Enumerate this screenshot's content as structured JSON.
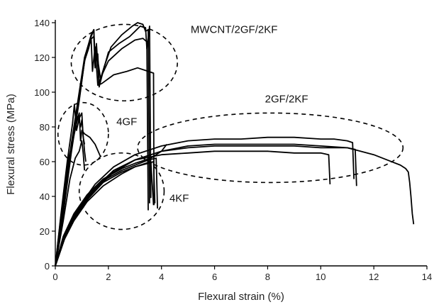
{
  "chart_data": {
    "type": "line",
    "xlabel": "Flexural strain (%)",
    "ylabel": "Flexural stress (MPa)",
    "xlim": [
      0,
      14
    ],
    "ylim": [
      0,
      140
    ],
    "xticks": [
      0,
      2,
      4,
      6,
      8,
      10,
      12,
      14
    ],
    "yticks": [
      0,
      20,
      40,
      60,
      80,
      100,
      120,
      140
    ],
    "grid": false,
    "annotations": [
      {
        "text": "MWCNT/2GF/2KF",
        "x": 5.1,
        "y": 134
      },
      {
        "text": "4GF",
        "x": 2.3,
        "y": 81
      },
      {
        "text": "2GF/2KF",
        "x": 7.9,
        "y": 94
      },
      {
        "text": "4KF",
        "x": 4.3,
        "y": 37
      }
    ],
    "groups": [
      {
        "label": "MWCNT/2GF/2KF",
        "ellipse": {
          "cx": 2.6,
          "cy": 117,
          "rx": 2.0,
          "ry": 22
        }
      },
      {
        "label": "4GF",
        "ellipse": {
          "cx": 1.05,
          "cy": 76,
          "rx": 0.95,
          "ry": 18
        }
      },
      {
        "label": "2GF/2KF",
        "ellipse": {
          "cx": 8.1,
          "cy": 68,
          "rx": 5.0,
          "ry": 20
        }
      },
      {
        "label": "4KF",
        "ellipse": {
          "cx": 2.5,
          "cy": 43,
          "rx": 1.6,
          "ry": 22
        }
      }
    ],
    "series": [
      {
        "values": [
          [
            0,
            0
          ],
          [
            0.3,
            30
          ],
          [
            0.6,
            65
          ],
          [
            0.9,
            95
          ],
          [
            1.1,
            118
          ],
          [
            1.3,
            130
          ],
          [
            1.45,
            136
          ],
          [
            1.5,
            118
          ],
          [
            1.55,
            128
          ],
          [
            1.65,
            103
          ],
          [
            1.8,
            112
          ],
          [
            2.0,
            123
          ],
          [
            2.4,
            128
          ],
          [
            2.8,
            132
          ],
          [
            3.0,
            135
          ],
          [
            3.2,
            138
          ],
          [
            3.4,
            137
          ],
          [
            3.45,
            125
          ],
          [
            3.55,
            138
          ],
          [
            3.6,
            39
          ]
        ]
      },
      {
        "values": [
          [
            0,
            0
          ],
          [
            0.3,
            32
          ],
          [
            0.6,
            68
          ],
          [
            0.9,
            98
          ],
          [
            1.15,
            122
          ],
          [
            1.35,
            133
          ],
          [
            1.45,
            136
          ],
          [
            1.5,
            115
          ],
          [
            1.6,
            122
          ],
          [
            1.65,
            105
          ],
          [
            1.85,
            115
          ],
          [
            2.1,
            126
          ],
          [
            2.5,
            133
          ],
          [
            2.9,
            138
          ],
          [
            3.1,
            140
          ],
          [
            3.3,
            139
          ],
          [
            3.4,
            135
          ],
          [
            3.5,
            136
          ],
          [
            3.55,
            36
          ]
        ]
      },
      {
        "values": [
          [
            0,
            0
          ],
          [
            0.3,
            31
          ],
          [
            0.6,
            66
          ],
          [
            0.9,
            96
          ],
          [
            1.1,
            118
          ],
          [
            1.25,
            125
          ],
          [
            1.35,
            131
          ],
          [
            1.4,
            112
          ],
          [
            1.5,
            126
          ],
          [
            1.6,
            104
          ],
          [
            1.75,
            105
          ],
          [
            2.2,
            110
          ],
          [
            2.7,
            112
          ],
          [
            3.1,
            114
          ],
          [
            3.5,
            112
          ],
          [
            3.7,
            111
          ],
          [
            3.72,
            35
          ]
        ]
      },
      {
        "values": [
          [
            0,
            0
          ],
          [
            0.3,
            33
          ],
          [
            0.6,
            70
          ],
          [
            0.9,
            100
          ],
          [
            1.1,
            120
          ],
          [
            1.3,
            130
          ],
          [
            1.45,
            132
          ],
          [
            1.5,
            114
          ],
          [
            1.55,
            124
          ],
          [
            1.7,
            108
          ],
          [
            2.0,
            118
          ],
          [
            2.5,
            125
          ],
          [
            3.0,
            130
          ],
          [
            3.3,
            131
          ],
          [
            3.45,
            129
          ],
          [
            3.5,
            32
          ]
        ]
      },
      {
        "values": [
          [
            0,
            0
          ],
          [
            0.2,
            28
          ],
          [
            0.45,
            60
          ],
          [
            0.65,
            82
          ],
          [
            0.72,
            93
          ],
          [
            0.8,
            78
          ],
          [
            0.9,
            85
          ],
          [
            1.0,
            88
          ],
          [
            1.05,
            74
          ],
          [
            1.1,
            70
          ]
        ]
      },
      {
        "values": [
          [
            0,
            0
          ],
          [
            0.25,
            30
          ],
          [
            0.5,
            60
          ],
          [
            0.7,
            75
          ],
          [
            0.85,
            86
          ],
          [
            0.95,
            80
          ],
          [
            1.0,
            84
          ],
          [
            1.1,
            66
          ],
          [
            1.15,
            60
          ]
        ]
      },
      {
        "values": [
          [
            0,
            0
          ],
          [
            0.2,
            27
          ],
          [
            0.45,
            58
          ],
          [
            0.65,
            72
          ],
          [
            0.8,
            82
          ],
          [
            0.9,
            88
          ],
          [
            0.95,
            72
          ],
          [
            1.0,
            78
          ],
          [
            1.1,
            76
          ],
          [
            1.3,
            74
          ],
          [
            1.5,
            70
          ],
          [
            1.7,
            63
          ]
        ]
      },
      {
        "values": [
          [
            0,
            0
          ],
          [
            0.3,
            26
          ],
          [
            0.55,
            50
          ],
          [
            0.75,
            62
          ],
          [
            0.9,
            66
          ],
          [
            1.0,
            72
          ],
          [
            1.05,
            65
          ],
          [
            1.1,
            55
          ]
        ]
      },
      {
        "values": [
          [
            0,
            0
          ],
          [
            0.3,
            14
          ],
          [
            0.7,
            26
          ],
          [
            1.2,
            37
          ],
          [
            1.8,
            46
          ],
          [
            2.5,
            53
          ],
          [
            3.0,
            57
          ],
          [
            3.4,
            59
          ],
          [
            3.6,
            60
          ],
          [
            3.7,
            35
          ]
        ]
      },
      {
        "values": [
          [
            0,
            0
          ],
          [
            0.3,
            16
          ],
          [
            0.7,
            29
          ],
          [
            1.2,
            40
          ],
          [
            1.8,
            49
          ],
          [
            2.5,
            55
          ],
          [
            3.0,
            58
          ],
          [
            3.5,
            61
          ],
          [
            3.8,
            62
          ],
          [
            3.85,
            33
          ]
        ]
      },
      {
        "values": [
          [
            0,
            0
          ],
          [
            0.3,
            15
          ],
          [
            0.7,
            27
          ],
          [
            1.2,
            38
          ],
          [
            1.8,
            48
          ],
          [
            2.5,
            54
          ],
          [
            3.0,
            57
          ],
          [
            3.5,
            59
          ],
          [
            3.7,
            60
          ],
          [
            3.75,
            36
          ]
        ]
      },
      {
        "values": [
          [
            0,
            0
          ],
          [
            0.3,
            17
          ],
          [
            0.7,
            30
          ],
          [
            1.2,
            41
          ],
          [
            1.8,
            50
          ],
          [
            2.5,
            56
          ],
          [
            3.0,
            59
          ],
          [
            3.6,
            62
          ],
          [
            4.0,
            66
          ],
          [
            4.2,
            70
          ]
        ]
      },
      {
        "values": [
          [
            0,
            0
          ],
          [
            0.4,
            18
          ],
          [
            0.9,
            32
          ],
          [
            1.5,
            44
          ],
          [
            2.2,
            54
          ],
          [
            3.0,
            61
          ],
          [
            4.0,
            66
          ],
          [
            5.0,
            68
          ],
          [
            6.0,
            69
          ],
          [
            7.0,
            69
          ],
          [
            8.0,
            69
          ],
          [
            9.0,
            69
          ],
          [
            10.0,
            68
          ],
          [
            11.0,
            68
          ],
          [
            11.3,
            67
          ],
          [
            11.35,
            46
          ]
        ]
      },
      {
        "values": [
          [
            0,
            0
          ],
          [
            0.4,
            19
          ],
          [
            0.9,
            34
          ],
          [
            1.5,
            47
          ],
          [
            2.2,
            57
          ],
          [
            3.0,
            64
          ],
          [
            4.0,
            69
          ],
          [
            5.0,
            72
          ],
          [
            6.0,
            73
          ],
          [
            7.0,
            73
          ],
          [
            8.0,
            74
          ],
          [
            9.0,
            74
          ],
          [
            10.0,
            73
          ],
          [
            10.5,
            73
          ],
          [
            11.0,
            72
          ],
          [
            11.2,
            71
          ],
          [
            11.25,
            50
          ]
        ]
      },
      {
        "values": [
          [
            0,
            0
          ],
          [
            0.4,
            18
          ],
          [
            0.9,
            33
          ],
          [
            1.5,
            45
          ],
          [
            2.2,
            55
          ],
          [
            3.0,
            61
          ],
          [
            4.0,
            64
          ],
          [
            5.0,
            65
          ],
          [
            6.0,
            66
          ],
          [
            7.0,
            66
          ],
          [
            8.0,
            66
          ],
          [
            9.0,
            65
          ],
          [
            10.0,
            65
          ],
          [
            10.3,
            64
          ],
          [
            10.35,
            47
          ]
        ]
      },
      {
        "values": [
          [
            0,
            0
          ],
          [
            0.4,
            18
          ],
          [
            0.9,
            32
          ],
          [
            1.5,
            44
          ],
          [
            2.2,
            54
          ],
          [
            3.0,
            61
          ],
          [
            4.0,
            66
          ],
          [
            5.0,
            69
          ],
          [
            6.0,
            70
          ],
          [
            7.0,
            70
          ],
          [
            8.0,
            70
          ],
          [
            9.0,
            70
          ],
          [
            10.0,
            69
          ],
          [
            11.0,
            68
          ],
          [
            12.0,
            64
          ],
          [
            12.5,
            61
          ],
          [
            13.0,
            58
          ],
          [
            13.2,
            56
          ],
          [
            13.3,
            54
          ],
          [
            13.35,
            48
          ],
          [
            13.4,
            40
          ],
          [
            13.45,
            30
          ],
          [
            13.5,
            24
          ]
        ]
      }
    ]
  }
}
